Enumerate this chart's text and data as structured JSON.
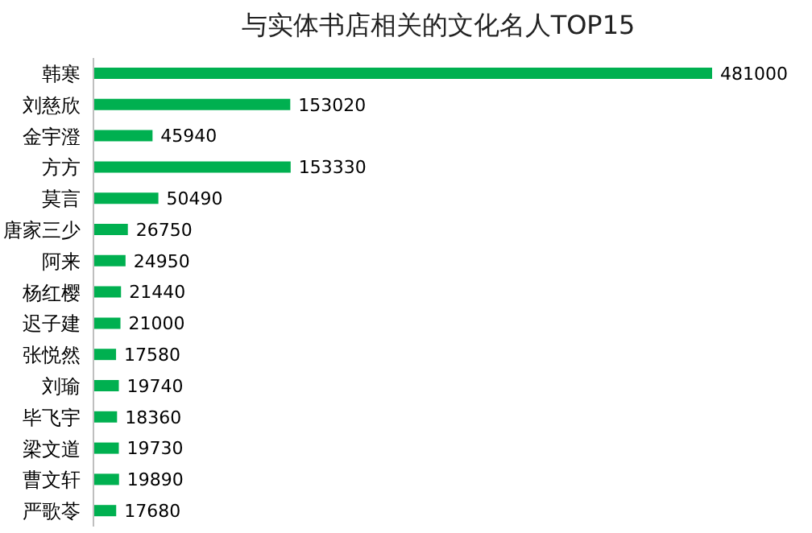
{
  "chart_data": {
    "type": "bar",
    "title": "与实体书店相关的文化名人TOP15",
    "orientation": "horizontal",
    "categories": [
      "韩寒",
      "刘慈欣",
      "金宇澄",
      "方方",
      "莫言",
      "唐家三少",
      "阿来",
      "杨红樱",
      "迟子建",
      "张悦然",
      "刘瑜",
      "毕飞宇",
      "梁文道",
      "曹文轩",
      "严歌苓"
    ],
    "values": [
      481000,
      153020,
      45940,
      153330,
      50490,
      26750,
      24950,
      21440,
      21000,
      17580,
      19740,
      18360,
      19730,
      19890,
      17680
    ],
    "color": "#00b050",
    "data_labels": true,
    "grid": false,
    "legend": false
  }
}
